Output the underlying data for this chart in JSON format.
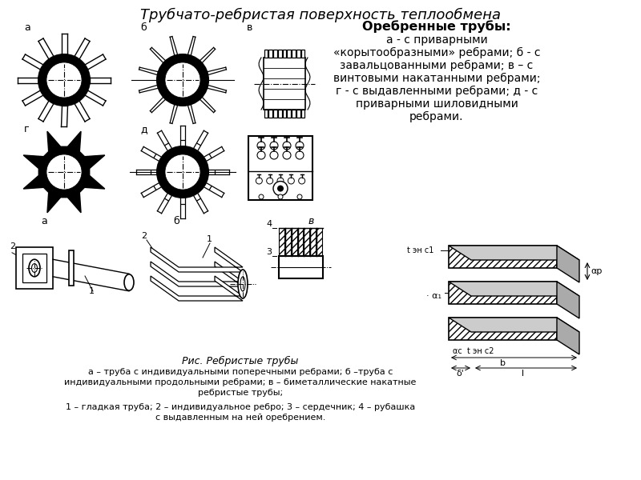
{
  "title": "Трубчато-ребристая поверхность теплообмена",
  "title_fontsize": 13,
  "title_style": "italic",
  "bg_color": "#ffffff",
  "text_color": "#000000",
  "right_box_title": "Оребренные трубы:",
  "right_box_lines": [
    "а - с приварными",
    "«корытообразными» ребрами; б - с",
    "завальцованными ребрами; в – с",
    "винтовыми накатанными ребрами;",
    "г - с выдавленными ребрами; д - с",
    "приварными шиловидными",
    "ребрами."
  ],
  "caption1": "Рис. Ребристые трубы",
  "caption2": "а – труба с индивидуальными поперечными ребрами; б –труба с",
  "caption3": "индивидуальными продольными ребрами; в – биметаллические накатные",
  "caption4": "ребристые трубы;",
  "caption5": "1 – гладкая труба; 2 – индивидуальное ребро; 3 – сердечник; 4 – рубашка",
  "caption6": "с выдавленным на ней оребрением."
}
